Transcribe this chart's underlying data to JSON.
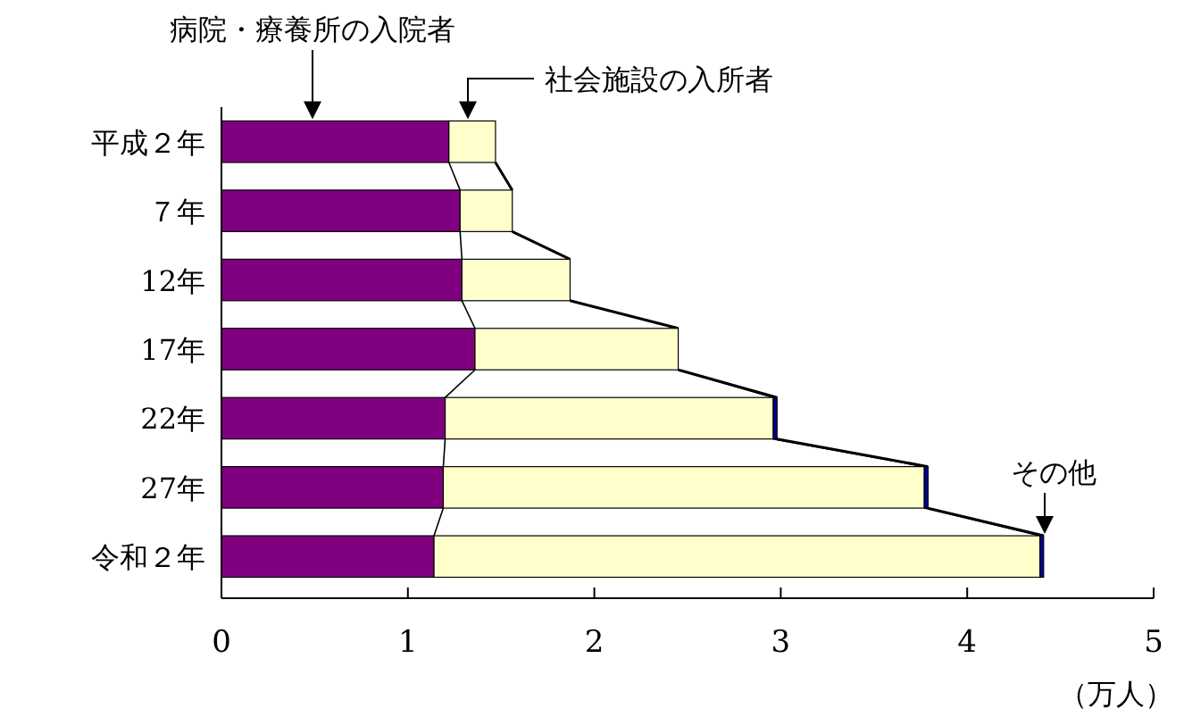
{
  "chart_data": {
    "type": "bar",
    "orientation": "horizontal",
    "stacked": true,
    "grid": false,
    "categories": [
      "平成２年",
      "７年",
      "12年",
      "17年",
      "22年",
      "27年",
      "令和２年"
    ],
    "series": [
      {
        "name": "病院・療養所の入院者",
        "color": "#800080",
        "values": [
          1.22,
          1.28,
          1.29,
          1.36,
          1.2,
          1.19,
          1.14
        ]
      },
      {
        "name": "社会施設の入所者",
        "color": "#ffffcc",
        "values": [
          0.25,
          0.28,
          0.58,
          1.09,
          1.76,
          2.58,
          3.25
        ]
      },
      {
        "name": "その他",
        "color": "#000099",
        "values": [
          0,
          0,
          0,
          0,
          0.02,
          0.02,
          0.02
        ]
      }
    ],
    "xlim": [
      0,
      5
    ],
    "xticks": [
      0,
      1,
      2,
      3,
      4,
      5
    ],
    "xlabel": "（万人）"
  }
}
